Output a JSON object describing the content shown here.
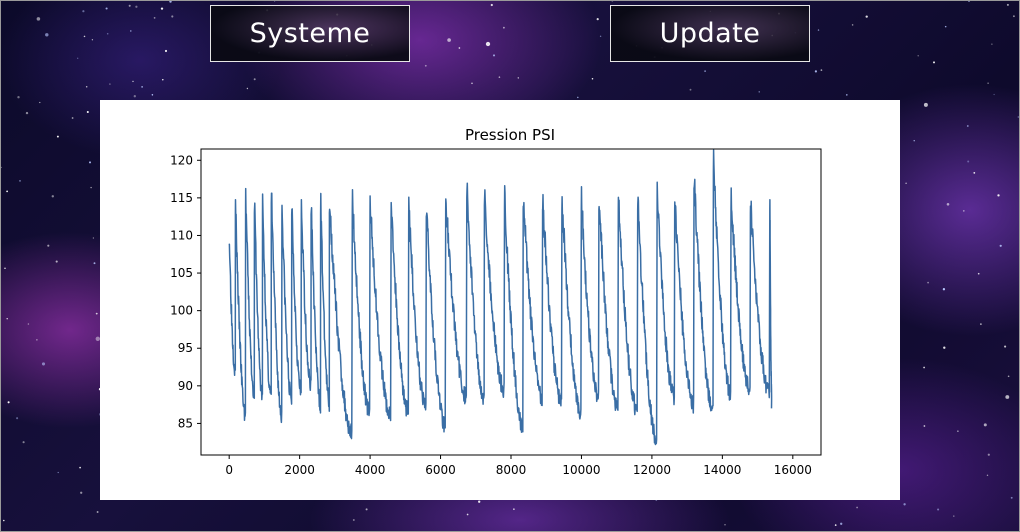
{
  "buttons": {
    "systeme": "Systeme",
    "update": "Update"
  },
  "colors": {
    "line": "#3a6ea5",
    "card": "#ffffff",
    "button_border": "#e6e6e6"
  },
  "chart_data": {
    "type": "line",
    "title": "Pression PSI",
    "xlabel": "",
    "ylabel": "",
    "xlim": [
      -800,
      16800
    ],
    "ylim": [
      80.8,
      121.5
    ],
    "xticks": [
      0,
      2000,
      4000,
      6000,
      8000,
      10000,
      12000,
      14000,
      16000
    ],
    "yticks": [
      85,
      90,
      95,
      100,
      105,
      110,
      115,
      120
    ],
    "grid": false,
    "x_range": [
      0,
      15400
    ],
    "cycles": [
      {
        "start": 0,
        "high": 110.5,
        "low": 92.0
      },
      {
        "start": 180,
        "high": 114.5,
        "low": 86.0
      },
      {
        "start": 470,
        "high": 115.5,
        "low": 89.0
      },
      {
        "start": 720,
        "high": 114.5,
        "low": 88.5
      },
      {
        "start": 950,
        "high": 114.3,
        "low": 88.5
      },
      {
        "start": 1200,
        "high": 115.8,
        "low": 86.0
      },
      {
        "start": 1500,
        "high": 114.3,
        "low": 88.0
      },
      {
        "start": 1780,
        "high": 114.3,
        "low": 89.0
      },
      {
        "start": 2050,
        "high": 114.3,
        "low": 90.0
      },
      {
        "start": 2330,
        "high": 114.3,
        "low": 87.5
      },
      {
        "start": 2600,
        "high": 114.3,
        "low": 87.5
      },
      {
        "start": 2850,
        "high": 114.5,
        "low": 83.8
      },
      {
        "start": 3500,
        "high": 115.0,
        "low": 86.5
      },
      {
        "start": 4000,
        "high": 114.5,
        "low": 86.0
      },
      {
        "start": 4600,
        "high": 114.0,
        "low": 86.5
      },
      {
        "start": 5100,
        "high": 114.0,
        "low": 87.0
      },
      {
        "start": 5600,
        "high": 114.0,
        "low": 84.8
      },
      {
        "start": 6150,
        "high": 115.0,
        "low": 88.5
      },
      {
        "start": 6750,
        "high": 116.5,
        "low": 88.5
      },
      {
        "start": 7250,
        "high": 115.5,
        "low": 89.5
      },
      {
        "start": 7820,
        "high": 115.2,
        "low": 84.5
      },
      {
        "start": 8350,
        "high": 115.0,
        "low": 88.5
      },
      {
        "start": 8900,
        "high": 115.0,
        "low": 88.0
      },
      {
        "start": 9450,
        "high": 115.0,
        "low": 86.5
      },
      {
        "start": 10000,
        "high": 115.0,
        "low": 88.5
      },
      {
        "start": 10500,
        "high": 115.0,
        "low": 87.0
      },
      {
        "start": 11050,
        "high": 115.0,
        "low": 86.5
      },
      {
        "start": 11600,
        "high": 115.0,
        "low": 82.7
      },
      {
        "start": 12150,
        "high": 115.5,
        "low": 88.5
      },
      {
        "start": 12650,
        "high": 115.0,
        "low": 87.5
      },
      {
        "start": 13200,
        "high": 117.8,
        "low": 86.5
      },
      {
        "start": 13750,
        "high": 120.0,
        "low": 89.0
      },
      {
        "start": 14250,
        "high": 115.0,
        "low": 89.5
      },
      {
        "start": 14800,
        "high": 114.5,
        "low": 89.0
      },
      {
        "start": 15350,
        "high": 115.0,
        "low": 88.5
      }
    ]
  }
}
